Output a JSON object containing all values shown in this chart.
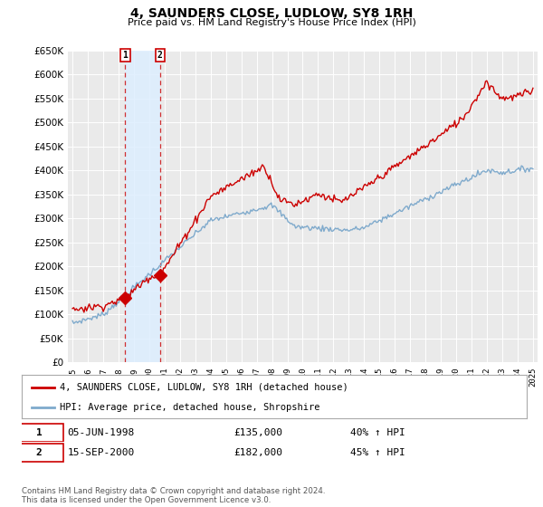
{
  "title": "4, SAUNDERS CLOSE, LUDLOW, SY8 1RH",
  "subtitle": "Price paid vs. HM Land Registry's House Price Index (HPI)",
  "legend_line1": "4, SAUNDERS CLOSE, LUDLOW, SY8 1RH (detached house)",
  "legend_line2": "HPI: Average price, detached house, Shropshire",
  "sale1_date": "05-JUN-1998",
  "sale1_price": 135000,
  "sale1_label": "1",
  "sale1_hpi": "40% ↑ HPI",
  "sale1_year": 1998.44,
  "sale2_date": "15-SEP-2000",
  "sale2_price": 182000,
  "sale2_label": "2",
  "sale2_hpi": "45% ↑ HPI",
  "sale2_year": 2000.71,
  "footer": "Contains HM Land Registry data © Crown copyright and database right 2024.\nThis data is licensed under the Open Government Licence v3.0.",
  "property_color": "#cc0000",
  "hpi_color": "#7faacc",
  "shade_color": "#ddeeff",
  "background_color": "#eaeaea",
  "grid_color": "#ffffff",
  "ylim": [
    0,
    650000
  ],
  "yticks": [
    0,
    50000,
    100000,
    150000,
    200000,
    250000,
    300000,
    350000,
    400000,
    450000,
    500000,
    550000,
    600000,
    650000
  ]
}
